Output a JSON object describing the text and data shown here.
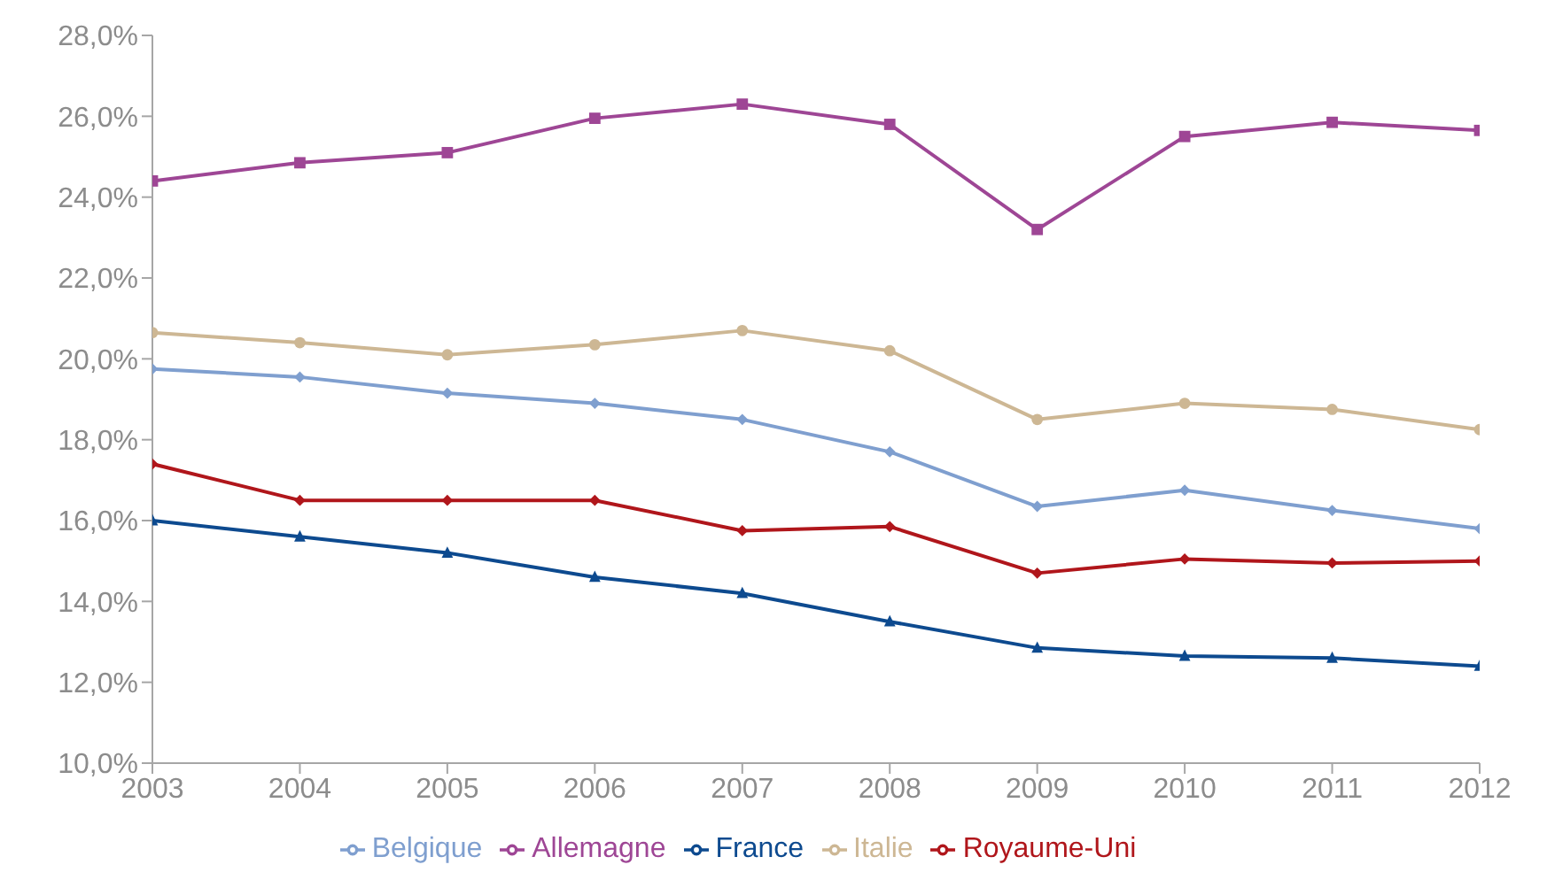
{
  "chart_data": {
    "type": "line",
    "categories": [
      "2003",
      "2004",
      "2005",
      "2006",
      "2007",
      "2008",
      "2009",
      "2010",
      "2011",
      "2012"
    ],
    "ylim": [
      10,
      28
    ],
    "yticks": [
      {
        "value": 10,
        "label": "10,0%"
      },
      {
        "value": 12,
        "label": "12,0%"
      },
      {
        "value": 14,
        "label": "14,0%"
      },
      {
        "value": 16,
        "label": "16,0%"
      },
      {
        "value": 18,
        "label": "18,0%"
      },
      {
        "value": 20,
        "label": "20,0%"
      },
      {
        "value": 22,
        "label": "22,0%"
      },
      {
        "value": 24,
        "label": "24,0%"
      },
      {
        "value": 26,
        "label": "26,0%"
      },
      {
        "value": 28,
        "label": "28,0%"
      }
    ],
    "grid": false,
    "legend": "bottom",
    "line_style": "solid",
    "series": [
      {
        "name": "Belgique",
        "color": "#7f9fcf",
        "marker": "diamond",
        "values": [
          19.75,
          19.55,
          19.15,
          18.9,
          18.5,
          17.7,
          16.35,
          16.75,
          16.25,
          15.8
        ]
      },
      {
        "name": "Allemagne",
        "color": "#9e4695",
        "marker": "square",
        "values": [
          24.4,
          24.85,
          25.1,
          25.95,
          26.3,
          25.8,
          23.2,
          25.5,
          25.85,
          25.65
        ]
      },
      {
        "name": "France",
        "color": "#0d4a8f",
        "marker": "triangle",
        "values": [
          16.0,
          15.6,
          15.2,
          14.6,
          14.2,
          13.5,
          12.85,
          12.65,
          12.6,
          12.4
        ]
      },
      {
        "name": "Italie",
        "color": "#cdb794",
        "marker": "circle",
        "values": [
          20.65,
          20.4,
          20.1,
          20.35,
          20.7,
          20.2,
          18.5,
          18.9,
          18.75,
          18.25
        ]
      },
      {
        "name": "Royaume-Uni",
        "color": "#b0161b",
        "marker": "diamond",
        "values": [
          17.4,
          16.5,
          16.5,
          16.5,
          15.75,
          15.85,
          14.7,
          15.05,
          14.95,
          15.0
        ]
      }
    ]
  }
}
